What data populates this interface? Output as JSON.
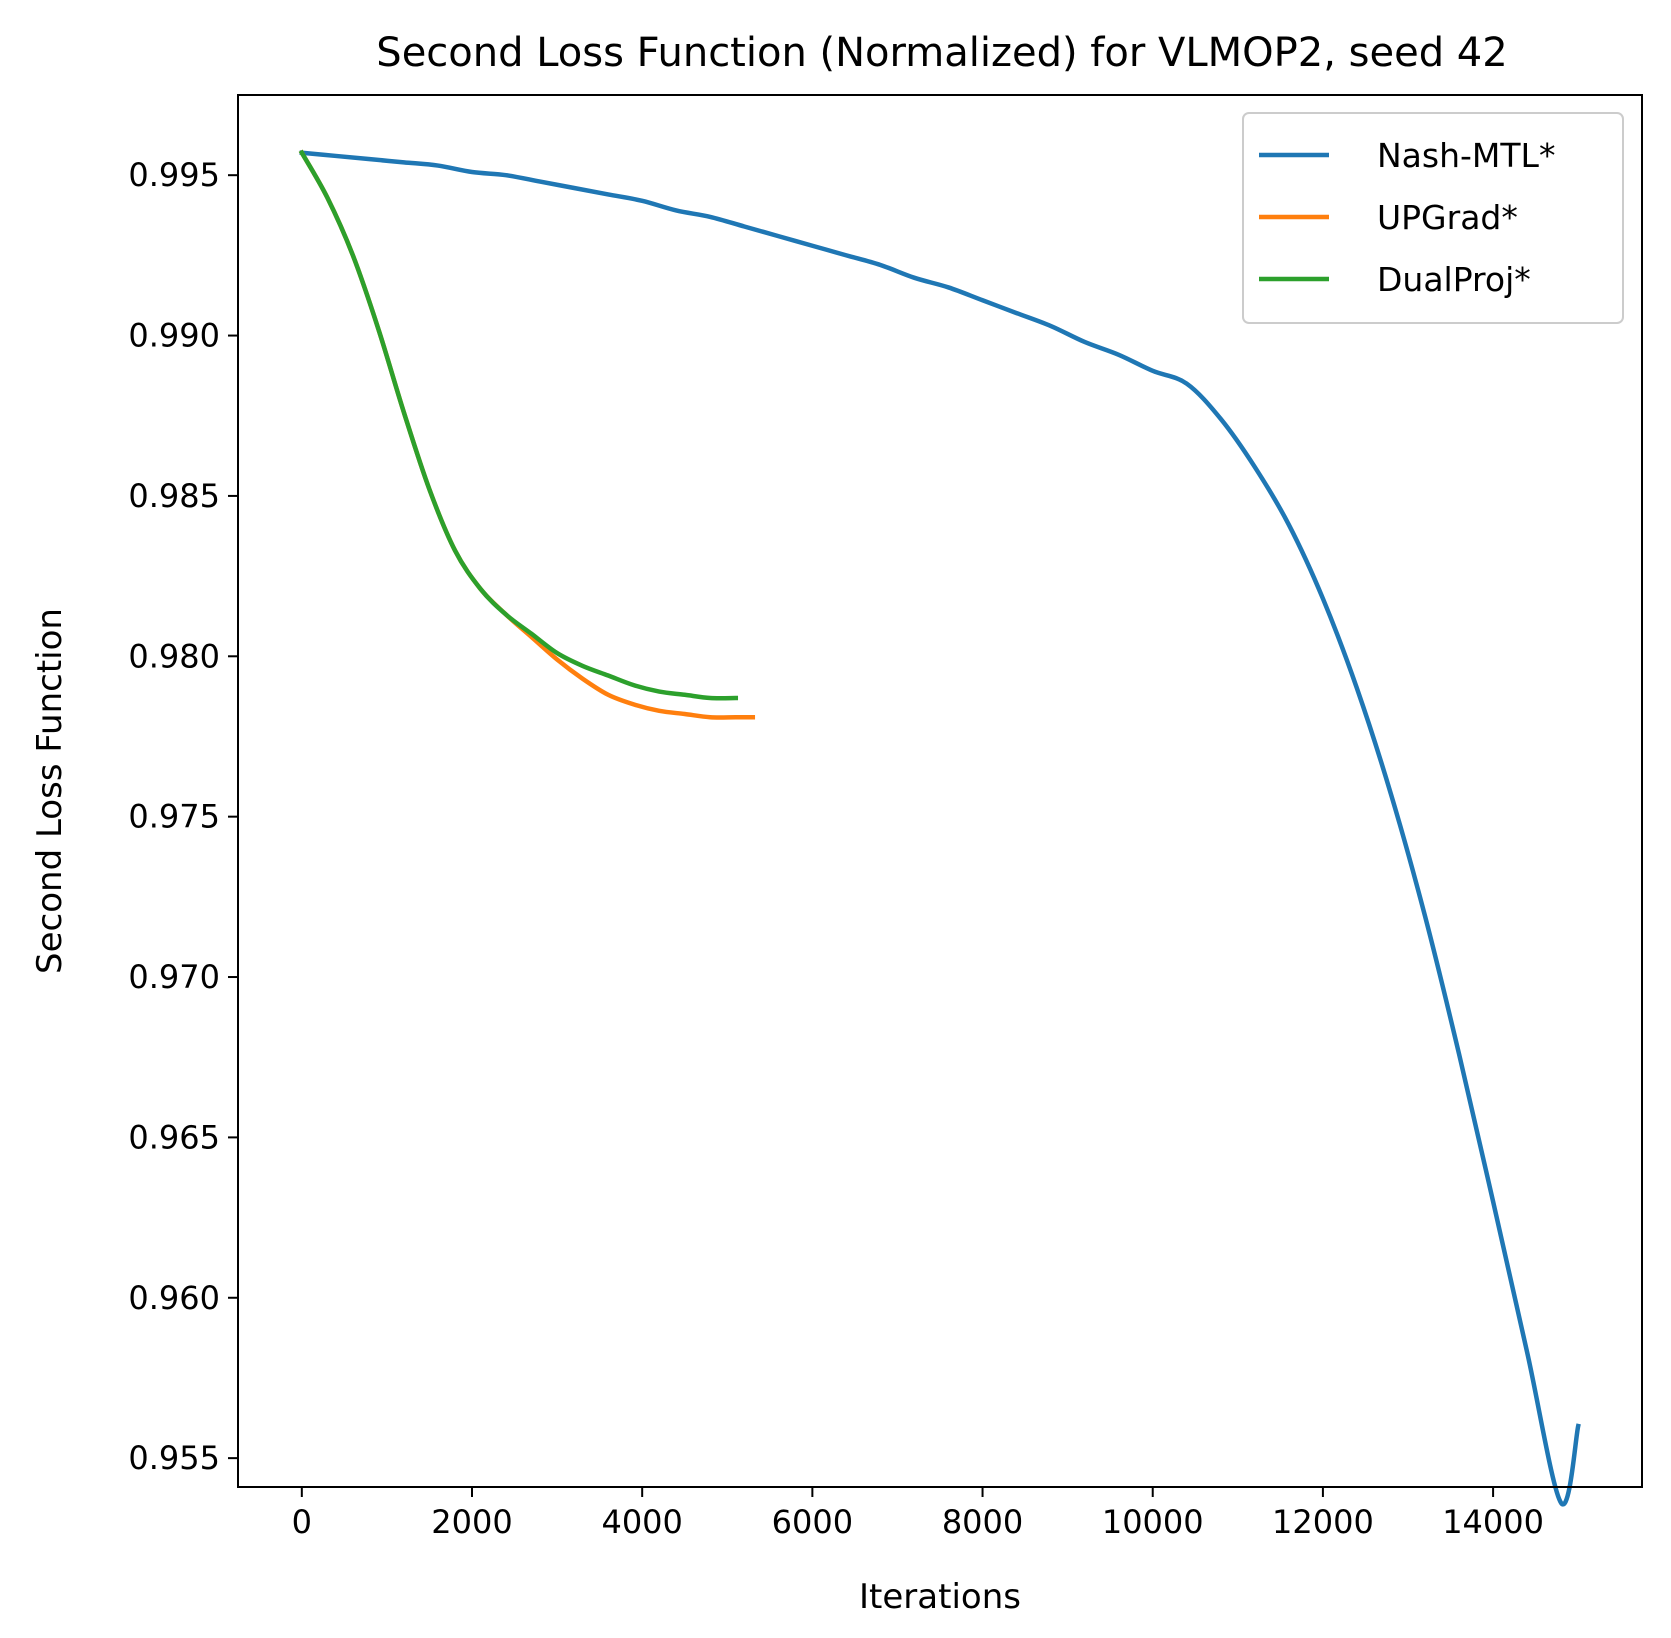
{
  "chart_data": {
    "type": "line",
    "title": "Second Loss Function (Normalized) for VLMOP2, seed 42",
    "xlabel": "Iterations",
    "ylabel": "Second Loss Function",
    "xlim": [
      -750,
      15750
    ],
    "ylim": [
      0.9541,
      0.9975
    ],
    "xticks": [
      0,
      2000,
      4000,
      6000,
      8000,
      10000,
      12000,
      14000
    ],
    "xtick_labels": [
      "0",
      "2000",
      "4000",
      "6000",
      "8000",
      "10000",
      "12000",
      "14000"
    ],
    "yticks": [
      0.955,
      0.96,
      0.965,
      0.97,
      0.975,
      0.98,
      0.985,
      0.99,
      0.995
    ],
    "ytick_labels": [
      "0.955",
      "0.960",
      "0.965",
      "0.970",
      "0.975",
      "0.980",
      "0.985",
      "0.990",
      "0.995"
    ],
    "grid": false,
    "legend_position": "top-right",
    "series": [
      {
        "name": "Nash-MTL*",
        "color": "#1f77b4",
        "x": [
          0,
          400,
          800,
          1200,
          1600,
          2000,
          2400,
          2800,
          3200,
          3600,
          4000,
          4400,
          4800,
          5200,
          5600,
          6000,
          6400,
          6800,
          7200,
          7600,
          8000,
          8400,
          8800,
          9200,
          9600,
          10000,
          10400,
          10800,
          11200,
          11600,
          12000,
          12400,
          12800,
          13200,
          13600,
          14000,
          14400,
          14800,
          15000
        ],
        "y": [
          0.9957,
          0.9956,
          0.9955,
          0.9954,
          0.9953,
          0.9951,
          0.995,
          0.9948,
          0.9946,
          0.9944,
          0.9942,
          0.9939,
          0.9937,
          0.9934,
          0.9931,
          0.9928,
          0.9925,
          0.9922,
          0.9918,
          0.9915,
          0.9911,
          0.9907,
          0.9903,
          0.9898,
          0.9894,
          0.9889,
          0.9885,
          0.9874,
          0.9859,
          0.9841,
          0.9818,
          0.979,
          0.9757,
          0.9719,
          0.9676,
          0.963,
          0.9583,
          0.9536,
          0.956
        ]
      },
      {
        "name": "UPGrad*",
        "color": "#ff7f0e",
        "x": [
          0,
          300,
          600,
          900,
          1200,
          1500,
          1800,
          2100,
          2400,
          2700,
          3000,
          3300,
          3600,
          3900,
          4200,
          4500,
          4800,
          5100,
          5300
        ],
        "y": [
          0.9957,
          0.9943,
          0.9925,
          0.9902,
          0.9876,
          0.9852,
          0.9833,
          0.9821,
          0.9813,
          0.9806,
          0.9799,
          0.9793,
          0.9788,
          0.9785,
          0.9783,
          0.9782,
          0.9781,
          0.9781,
          0.9781
        ]
      },
      {
        "name": "DualProj*",
        "color": "#2ca02c",
        "x": [
          0,
          300,
          600,
          900,
          1200,
          1500,
          1800,
          2100,
          2400,
          2700,
          3000,
          3300,
          3600,
          3900,
          4200,
          4500,
          4800,
          5100
        ],
        "y": [
          0.9957,
          0.9943,
          0.9925,
          0.9902,
          0.9876,
          0.9852,
          0.9833,
          0.9821,
          0.9813,
          0.9807,
          0.9801,
          0.9797,
          0.9794,
          0.9791,
          0.9789,
          0.9788,
          0.9787,
          0.9787
        ]
      }
    ]
  }
}
